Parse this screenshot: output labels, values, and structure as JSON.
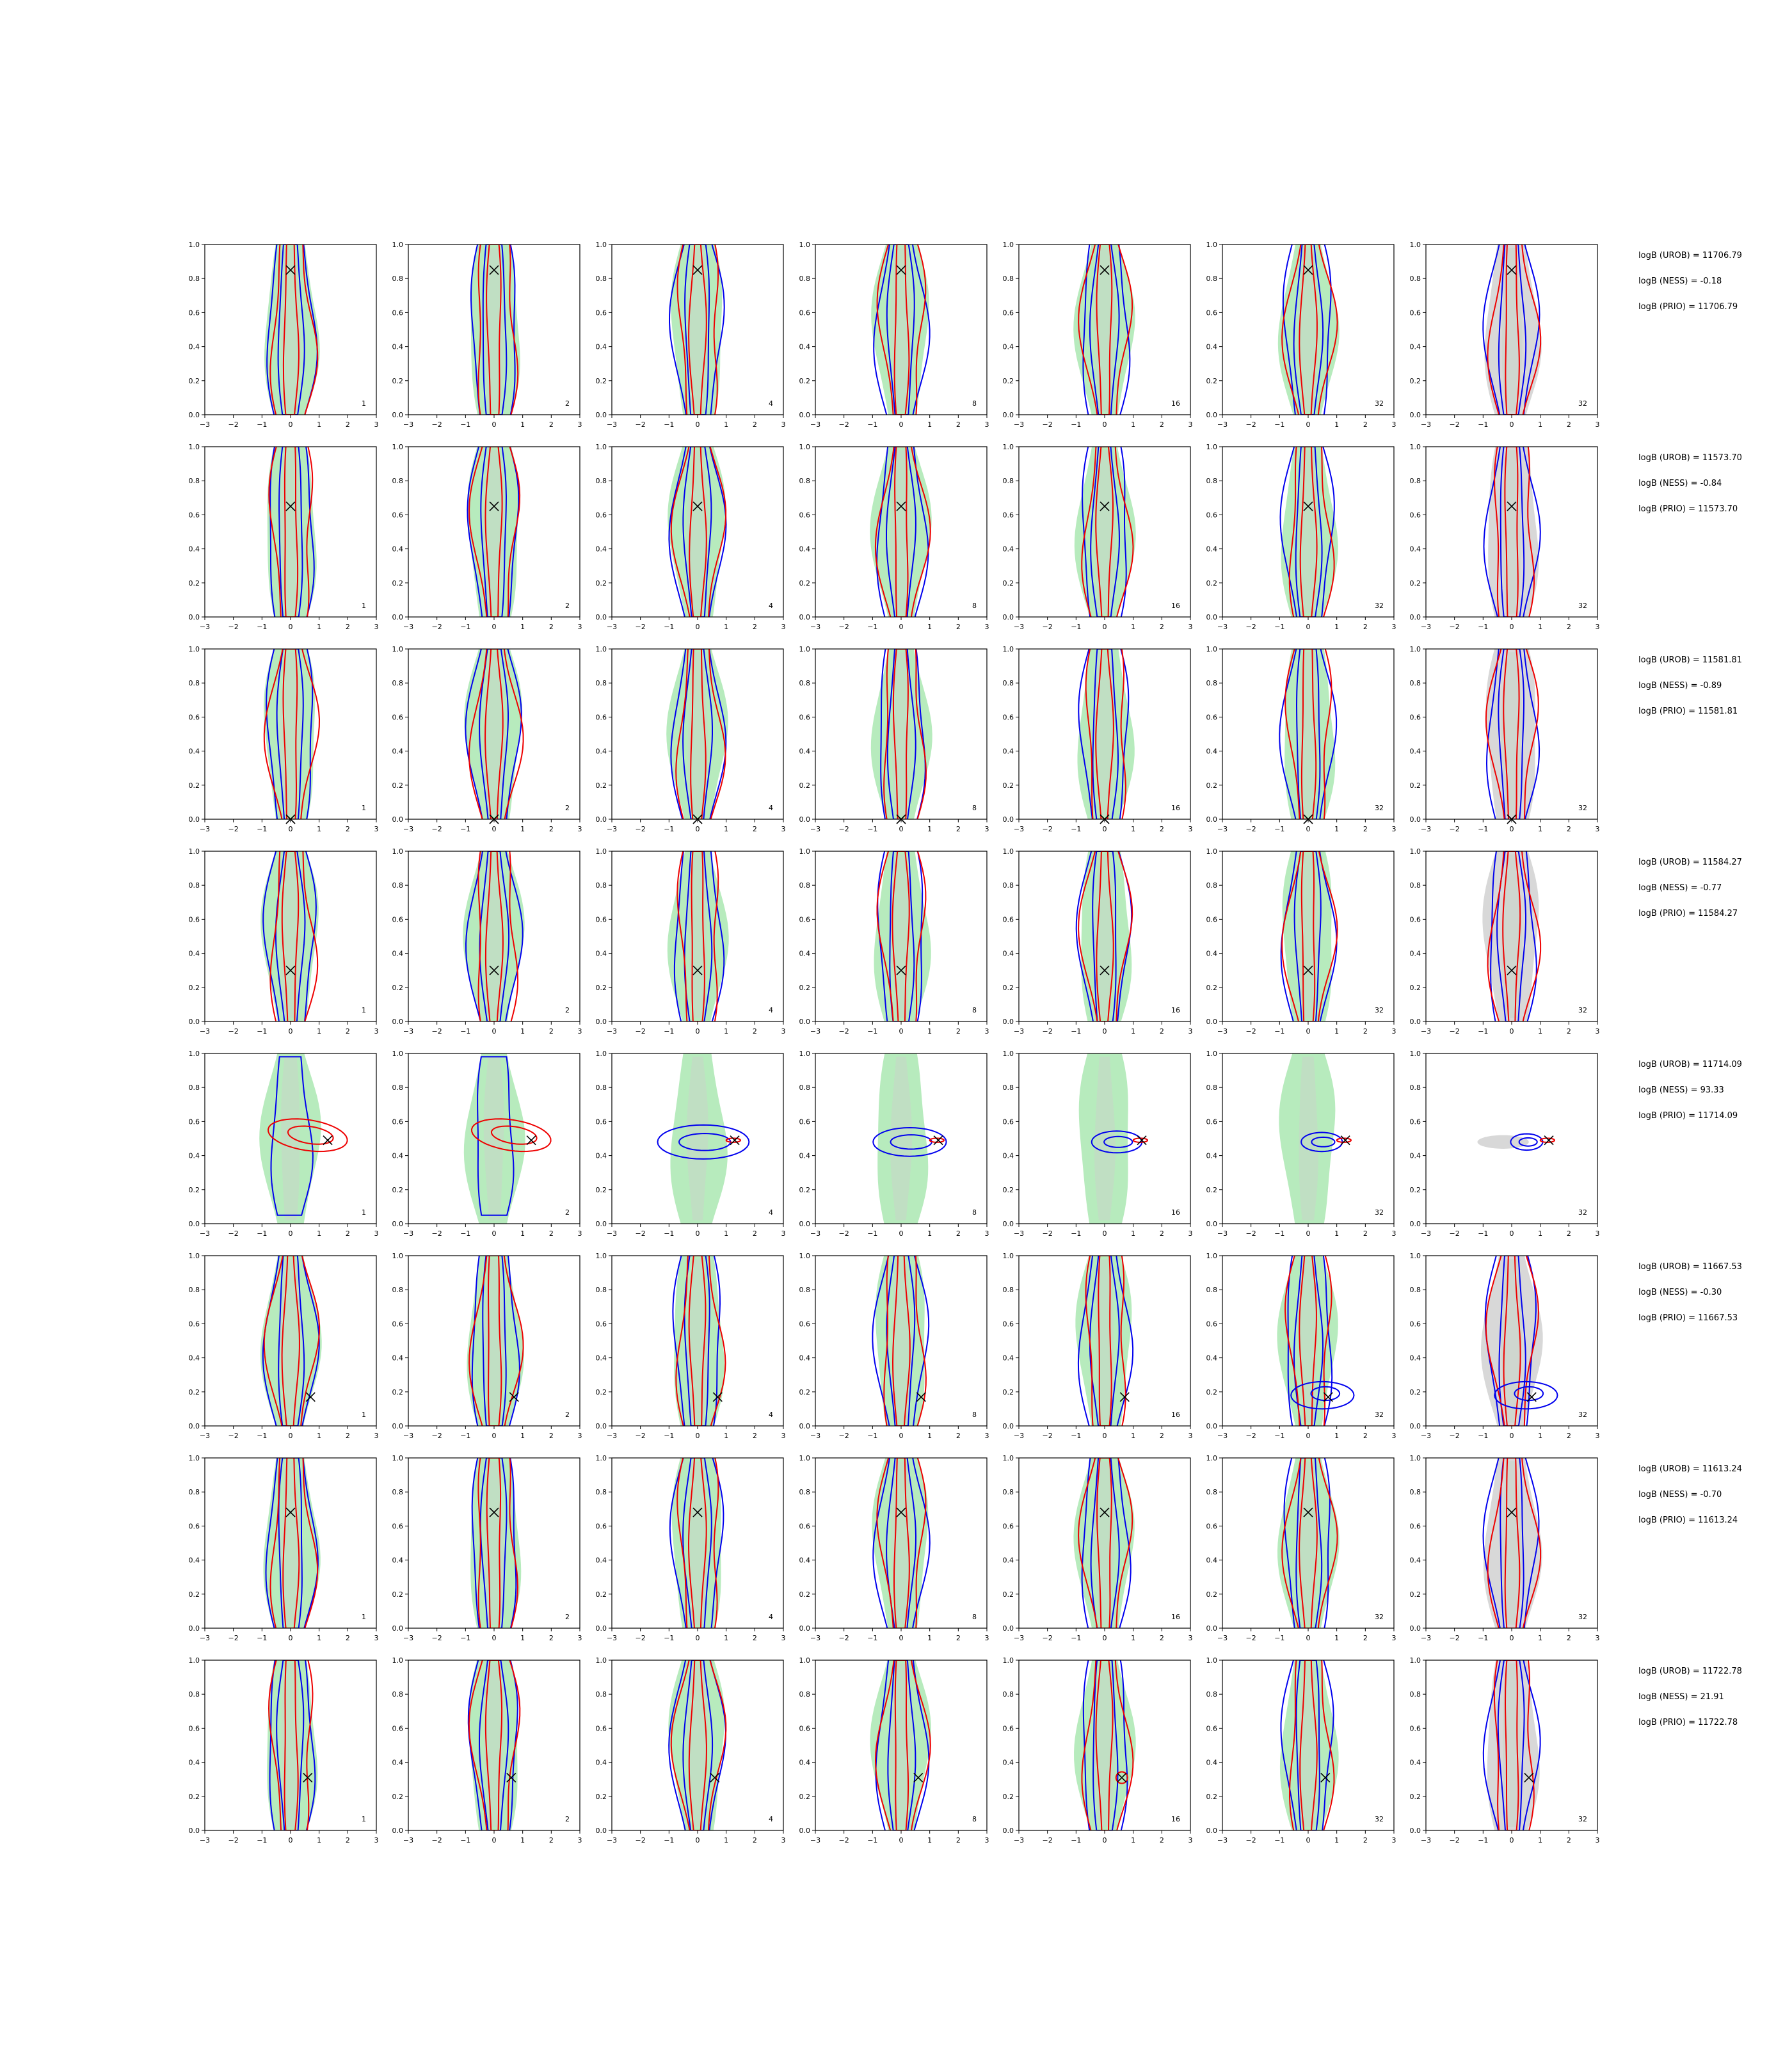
{
  "chart_data": {
    "type": "contour",
    "grid": false,
    "layout": {
      "rows": 8,
      "cols": 7
    },
    "panel_tags": [
      "1",
      "2",
      "4",
      "8",
      "16",
      "32",
      "32"
    ],
    "xlim": [
      -3,
      3
    ],
    "ylim": [
      0,
      1
    ],
    "xticks": [
      "−3",
      "−2",
      "−1",
      "0",
      "1",
      "2",
      "3"
    ],
    "yticks": [
      "0.0",
      "0.2",
      "0.4",
      "0.6",
      "0.8",
      "1.0"
    ],
    "colors": {
      "green_fill": "#b7ebbd",
      "grey_fill": "#d8d8d8",
      "blue_contour": "#0000ee",
      "red_contour": "#ee0000",
      "marker": "#000000"
    },
    "rows": [
      {
        "truth": [
          0,
          0.85
        ],
        "logB": [
          "logB (UROB) = 11706.79",
          "logB (NESS) = -0.18",
          "logB (PRIO) = 11706.79"
        ]
      },
      {
        "truth": [
          0,
          0.65
        ],
        "logB": [
          "logB (UROB) = 11573.70",
          "logB (NESS) = -0.84",
          "logB (PRIO) = 11573.70"
        ]
      },
      {
        "truth": [
          0,
          0.0
        ],
        "logB": [
          "logB (UROB) = 11581.81",
          "logB (NESS) = -0.89",
          "logB (PRIO) = 11581.81"
        ]
      },
      {
        "truth": [
          0,
          0.3
        ],
        "logB": [
          "logB (UROB) = 11584.27",
          "logB (NESS) = -0.77",
          "logB (PRIO) = 11584.27"
        ]
      },
      {
        "truth": [
          1.3,
          0.49
        ],
        "logB": [
          "logB (UROB) = 11714.09",
          "logB (NESS) = 93.33",
          "logB (PRIO) = 11714.09"
        ]
      },
      {
        "truth": [
          0.7,
          0.17
        ],
        "logB": [
          "logB (UROB) = 11667.53",
          "logB (NESS) = -0.30",
          "logB (PRIO) = 11667.53"
        ]
      },
      {
        "truth": [
          0,
          0.68
        ],
        "logB": [
          "logB (UROB) = 11613.24",
          "logB (NESS) = -0.70",
          "logB (PRIO) = 11613.24"
        ]
      },
      {
        "truth": [
          0.6,
          0.31
        ],
        "logB": [
          "logB (UROB) = 11722.78",
          "logB (NESS) = 21.91",
          "logB (PRIO) = 11722.78"
        ]
      }
    ]
  }
}
